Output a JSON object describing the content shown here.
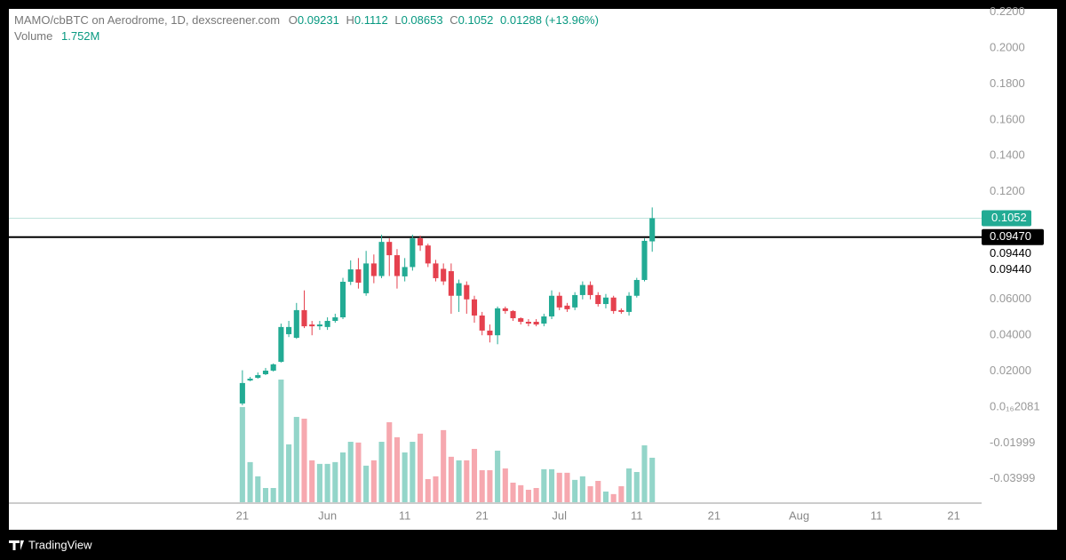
{
  "chart_data": {
    "type": "candlestick",
    "title": "MAMO/cbBTC on Aerodrome, 1D, dexscreener.com",
    "ohlc_letters": [
      "O",
      "H",
      "L",
      "C"
    ],
    "change": "0.01288 (+13.96%)",
    "volume_title": "Volume",
    "volume_legend": "1.752M",
    "x": [
      0,
      1,
      2,
      3,
      4,
      5,
      6,
      7,
      8,
      9,
      10,
      11,
      12,
      13,
      14,
      15,
      16,
      17,
      18,
      19,
      20,
      21,
      22,
      23,
      24,
      25,
      26,
      27,
      28,
      29,
      30,
      31,
      32,
      33,
      34,
      35,
      36,
      37,
      38,
      39,
      40,
      41,
      42,
      43,
      44,
      45,
      46,
      47,
      48,
      49,
      50,
      51,
      52,
      53
    ],
    "open": [
      0.002,
      0.0148,
      0.0163,
      0.0183,
      0.0203,
      0.0252,
      0.0406,
      0.0386,
      0.054,
      0.046,
      0.045,
      0.0446,
      0.048,
      0.05,
      0.0698,
      0.0767,
      0.0634,
      0.08,
      0.073,
      0.092,
      0.0846,
      0.0728,
      0.078,
      0.094,
      0.09,
      0.08,
      0.077,
      0.0757,
      0.062,
      0.068,
      0.06,
      0.051,
      0.0426,
      0.04,
      0.055,
      0.0535,
      0.0495,
      0.0475,
      0.0475,
      0.0465,
      0.0505,
      0.062,
      0.0565,
      0.0555,
      0.0624,
      0.068,
      0.0624,
      0.0574,
      0.061,
      0.054,
      0.053,
      0.062,
      0.0708,
      0.09231
    ],
    "high": [
      0.0205,
      0.0168,
      0.0193,
      0.0218,
      0.0243,
      0.0465,
      0.048,
      0.058,
      0.065,
      0.048,
      0.048,
      0.05,
      0.052,
      0.072,
      0.0817,
      0.083,
      0.087,
      0.085,
      0.096,
      0.094,
      0.088,
      0.083,
      0.096,
      0.0955,
      0.091,
      0.082,
      0.08,
      0.08,
      0.071,
      0.07,
      0.062,
      0.053,
      0.046,
      0.056,
      0.056,
      0.054,
      0.05,
      0.049,
      0.049,
      0.052,
      0.065,
      0.064,
      0.058,
      0.064,
      0.07,
      0.07,
      0.064,
      0.063,
      0.062,
      0.055,
      0.064,
      0.072,
      0.094,
      0.1112
    ],
    "low": [
      0.001,
      0.0144,
      0.0158,
      0.0178,
      0.0198,
      0.0248,
      0.039,
      0.038,
      0.044,
      0.04,
      0.043,
      0.043,
      0.047,
      0.049,
      0.068,
      0.066,
      0.062,
      0.069,
      0.0718,
      0.073,
      0.066,
      0.07,
      0.076,
      0.087,
      0.078,
      0.07,
      0.068,
      0.052,
      0.053,
      0.052,
      0.047,
      0.04,
      0.036,
      0.035,
      0.052,
      0.048,
      0.046,
      0.045,
      0.045,
      0.045,
      0.049,
      0.054,
      0.053,
      0.054,
      0.06,
      0.06,
      0.056,
      0.055,
      0.052,
      0.052,
      0.051,
      0.061,
      0.07,
      0.08653
    ],
    "close": [
      0.0134,
      0.0158,
      0.0178,
      0.0203,
      0.0238,
      0.0446,
      0.0446,
      0.054,
      0.045,
      0.045,
      0.046,
      0.048,
      0.05,
      0.0698,
      0.0767,
      0.0693,
      0.08,
      0.073,
      0.092,
      0.0846,
      0.073,
      0.078,
      0.094,
      0.09,
      0.08,
      0.0718,
      0.07,
      0.062,
      0.069,
      0.06,
      0.051,
      0.0426,
      0.04,
      0.055,
      0.0535,
      0.0495,
      0.0475,
      0.0465,
      0.046,
      0.0505,
      0.062,
      0.0555,
      0.0545,
      0.0624,
      0.068,
      0.0624,
      0.0574,
      0.061,
      0.0535,
      0.053,
      0.062,
      0.0708,
      0.0926,
      0.1052
    ],
    "volume": [
      3.75,
      1.58,
      1.02,
      0.56,
      0.56,
      4.83,
      2.28,
      3.36,
      3.29,
      1.65,
      1.51,
      1.51,
      1.58,
      1.96,
      2.38,
      2.35,
      1.44,
      1.65,
      2.38,
      3.15,
      2.56,
      1.96,
      2.38,
      2.7,
      0.91,
      1.02,
      2.84,
      1.79,
      1.65,
      1.65,
      2.1,
      1.26,
      1.26,
      2.03,
      1.33,
      0.77,
      0.67,
      0.49,
      0.56,
      1.3,
      1.3,
      1.16,
      1.16,
      0.88,
      1.02,
      0.63,
      0.84,
      0.42,
      0.32,
      0.63,
      1.33,
      1.19,
      2.24,
      1.752
    ],
    "volume_lim": [
      0,
      19.43
    ],
    "up_color": "#22ab94",
    "down_color": "#e5414e",
    "up_volume_color": "#93d5c9",
    "down_volume_color": "#f6a8af",
    "xlim": [
      -30.2,
      95.6
    ],
    "xticks": [
      {
        "value": 0,
        "label": "21"
      },
      {
        "value": 11,
        "label": "Jun"
      },
      {
        "value": 21,
        "label": "11"
      },
      {
        "value": 31,
        "label": "21"
      },
      {
        "value": 41,
        "label": "Jul"
      },
      {
        "value": 51,
        "label": "11"
      },
      {
        "value": 61,
        "label": "21"
      },
      {
        "value": 72,
        "label": "Aug"
      },
      {
        "value": 82,
        "label": "11"
      },
      {
        "value": 92,
        "label": "21"
      }
    ],
    "ylim": [
      -0.053,
      0.2218
    ],
    "yticks": [
      {
        "value": 0.22,
        "label": "0.2200"
      },
      {
        "value": 0.2,
        "label": "0.2000"
      },
      {
        "value": 0.18,
        "label": "0.1800"
      },
      {
        "value": 0.16,
        "label": "0.1600"
      },
      {
        "value": 0.14,
        "label": "0.1400"
      },
      {
        "value": 0.12,
        "label": "0.1200"
      },
      {
        "value": 0.06,
        "label": "0.06000"
      },
      {
        "value": 0.04,
        "label": "0.04000"
      },
      {
        "value": 0.02,
        "label": "0.02000"
      },
      {
        "value": 2.081e-17,
        "label": "0.0₁₆2081"
      },
      -0.01999,
      -0.03999
    ],
    "price_line": {
      "value": 0.0947,
      "label": "0.09470"
    },
    "axis_notes": [
      "0.09440",
      "0.09440"
    ],
    "brand": "TradingView"
  }
}
